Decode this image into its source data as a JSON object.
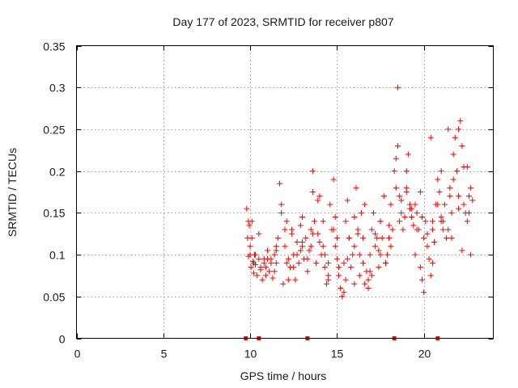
{
  "chart_data": {
    "type": "scatter",
    "title": "Day 177 of 2023, SRMTID for receiver p807",
    "xlabel": "GPS time / hours",
    "ylabel": "SRMTID / TECUs",
    "xlim": [
      0,
      24
    ],
    "ylim": [
      0,
      0.35
    ],
    "x_ticks": [
      "0",
      "5",
      "10",
      "15",
      "20"
    ],
    "x_tick_values": [
      0,
      5,
      10,
      15,
      20
    ],
    "y_ticks": [
      "0",
      "0.05",
      "0.1",
      "0.15",
      "0.2",
      "0.25",
      "0.3",
      "0.35"
    ],
    "y_tick_values": [
      0,
      0.05,
      0.1,
      0.15,
      0.2,
      0.25,
      0.3,
      0.35
    ],
    "grid": true,
    "marker": "plus",
    "series_color": "#ff0000",
    "zero_markers_x": [
      9.75,
      10.5,
      13.3,
      18.3,
      20.8
    ],
    "series": [
      {
        "name": "SRMTID",
        "x": [
          9.8,
          9.85,
          9.9,
          9.95,
          10.0,
          10.05,
          10.1,
          10.15,
          10.2,
          10.25,
          10.3,
          10.4,
          10.5,
          10.6,
          10.7,
          10.8,
          10.9,
          11.0,
          11.1,
          11.2,
          11.3,
          11.4,
          11.5,
          11.6,
          11.7,
          11.8,
          11.9,
          12.0,
          12.1,
          12.2,
          12.3,
          12.4,
          12.5,
          12.6,
          12.7,
          12.8,
          12.9,
          13.0,
          13.1,
          13.2,
          13.3,
          13.4,
          13.5,
          13.6,
          13.7,
          13.8,
          13.9,
          14.0,
          14.1,
          14.2,
          14.3,
          14.4,
          14.5,
          14.6,
          14.7,
          14.8,
          14.9,
          15.0,
          15.1,
          15.2,
          15.3,
          15.4,
          15.5,
          15.6,
          15.7,
          15.8,
          15.9,
          16.0,
          16.1,
          16.2,
          16.3,
          16.4,
          16.5,
          16.6,
          16.7,
          16.8,
          16.9,
          17.0,
          17.1,
          17.2,
          17.3,
          17.4,
          17.5,
          17.6,
          17.7,
          17.8,
          17.9,
          18.0,
          18.1,
          18.2,
          18.3,
          18.4,
          18.5,
          18.6,
          18.7,
          18.8,
          18.9,
          19.0,
          19.1,
          19.2,
          19.3,
          19.4,
          19.5,
          19.6,
          19.7,
          19.8,
          19.9,
          20.0,
          20.1,
          20.2,
          20.3,
          20.4,
          20.5,
          20.6,
          20.7,
          20.8,
          20.9,
          21.0,
          21.1,
          21.2,
          21.3,
          21.4,
          21.5,
          21.6,
          21.7,
          21.8,
          21.9,
          22.0,
          22.1,
          22.2,
          22.3,
          22.4,
          22.5,
          22.6,
          22.7,
          22.8,
          9.9,
          10.1,
          10.3,
          10.6,
          10.9,
          11.2,
          11.5,
          11.8,
          12.1,
          12.4,
          12.7,
          13.0,
          13.3,
          13.6,
          13.9,
          14.2,
          14.5,
          14.8,
          15.1,
          15.4,
          15.7,
          16.0,
          16.3,
          16.6,
          16.9,
          17.2,
          17.5,
          17.8,
          18.1,
          18.4,
          18.7,
          19.0,
          19.3,
          19.6,
          19.9,
          20.2,
          20.5,
          20.8,
          21.1,
          21.4,
          21.7,
          22.0,
          22.3,
          22.6,
          10.0,
          10.5,
          11.0,
          11.5,
          12.0,
          12.5,
          13.0,
          13.5,
          14.0,
          14.5,
          15.0,
          15.5,
          16.0,
          16.5,
          17.0,
          17.5,
          18.0,
          18.5,
          19.0,
          19.5,
          20.0,
          20.5,
          21.0,
          21.5,
          22.0,
          22.5,
          10.2,
          10.8,
          11.4,
          12.2,
          12.9,
          13.6,
          14.3,
          14.9,
          15.6,
          16.2,
          16.8,
          17.4,
          18.0,
          18.6,
          19.2,
          19.8,
          20.4,
          21.0,
          21.6,
          22.2,
          22.7
        ],
        "y": [
          0.155,
          0.12,
          0.098,
          0.135,
          0.11,
          0.085,
          0.14,
          0.092,
          0.078,
          0.1,
          0.088,
          0.075,
          0.095,
          0.082,
          0.07,
          0.09,
          0.085,
          0.105,
          0.08,
          0.095,
          0.072,
          0.1,
          0.09,
          0.12,
          0.185,
          0.15,
          0.065,
          0.11,
          0.14,
          0.095,
          0.085,
          0.125,
          0.1,
          0.07,
          0.115,
          0.09,
          0.135,
          0.11,
          0.095,
          0.12,
          0.08,
          0.105,
          0.13,
          0.2,
          0.14,
          0.09,
          0.165,
          0.115,
          0.1,
          0.14,
          0.085,
          0.065,
          0.075,
          0.16,
          0.13,
          0.19,
          0.11,
          0.095,
          0.075,
          0.06,
          0.05,
          0.09,
          0.14,
          0.165,
          0.12,
          0.085,
          0.1,
          0.065,
          0.18,
          0.13,
          0.075,
          0.15,
          0.12,
          0.16,
          0.08,
          0.07,
          0.1,
          0.13,
          0.15,
          0.11,
          0.12,
          0.085,
          0.14,
          0.12,
          0.17,
          0.09,
          0.1,
          0.135,
          0.16,
          0.13,
          0.2,
          0.215,
          0.3,
          0.17,
          0.15,
          0.13,
          0.145,
          0.2,
          0.22,
          0.16,
          0.145,
          0.135,
          0.1,
          0.15,
          0.13,
          0.085,
          0.07,
          0.12,
          0.14,
          0.125,
          0.095,
          0.075,
          0.14,
          0.115,
          0.16,
          0.19,
          0.175,
          0.145,
          0.13,
          0.16,
          0.12,
          0.25,
          0.18,
          0.15,
          0.22,
          0.24,
          0.2,
          0.17,
          0.26,
          0.23,
          0.16,
          0.15,
          0.14,
          0.17,
          0.1,
          0.165,
          0.14,
          0.12,
          0.1,
          0.085,
          0.075,
          0.09,
          0.11,
          0.16,
          0.09,
          0.13,
          0.1,
          0.115,
          0.095,
          0.175,
          0.125,
          0.11,
          0.07,
          0.13,
          0.085,
          0.055,
          0.12,
          0.145,
          0.1,
          0.065,
          0.08,
          0.125,
          0.1,
          0.09,
          0.11,
          0.18,
          0.165,
          0.175,
          0.155,
          0.13,
          0.145,
          0.11,
          0.09,
          0.16,
          0.14,
          0.13,
          0.19,
          0.25,
          0.205,
          0.15,
          0.1,
          0.125,
          0.095,
          0.105,
          0.13,
          0.085,
          0.145,
          0.11,
          0.17,
          0.09,
          0.12,
          0.07,
          0.11,
          0.09,
          0.075,
          0.14,
          0.12,
          0.23,
          0.18,
          0.16,
          0.055,
          0.13,
          0.2,
          0.17,
          0.155,
          0.205,
          0.09,
          0.095,
          0.08,
          0.07,
          0.105,
          0.125,
          0.1,
          0.145,
          0.095,
          0.125,
          0.06,
          0.105,
          0.12,
          0.14,
          0.155,
          0.175,
          0.24,
          0.14,
          0.12,
          0.105,
          0.18
        ]
      }
    ]
  }
}
